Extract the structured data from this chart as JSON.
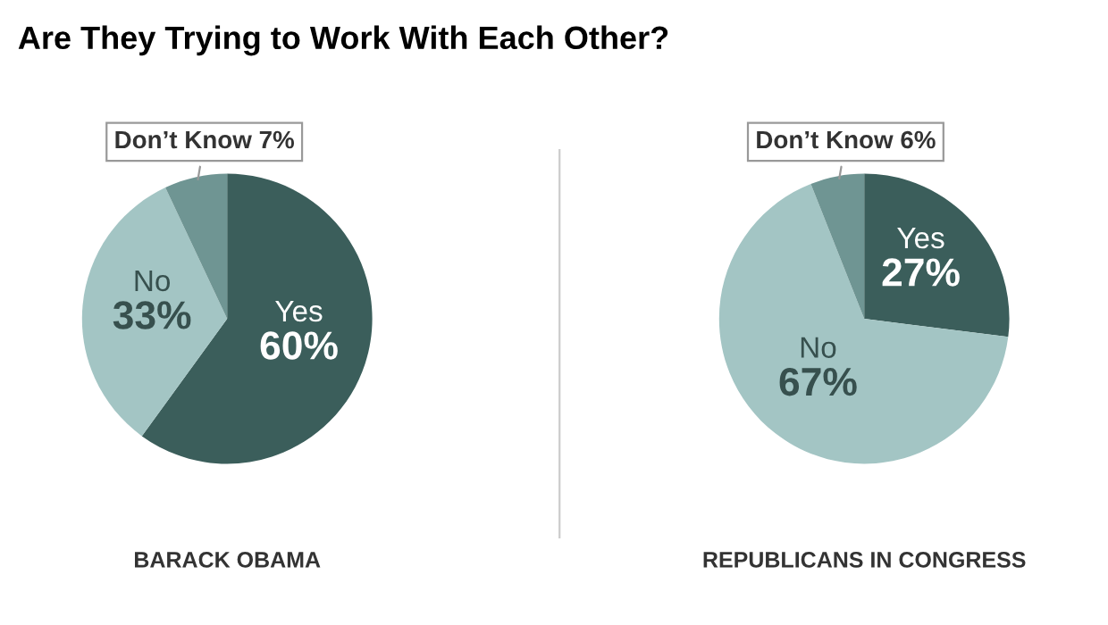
{
  "chart_data": [
    {
      "type": "pie",
      "title": "Are They Trying to Work With Each Other?",
      "xlabel": "BARACK OBAMA",
      "categories": [
        "Yes",
        "No",
        "Don’t Know"
      ],
      "values": [
        60,
        33,
        7
      ],
      "value_labels": [
        "60%",
        "33%",
        "7%"
      ],
      "colors": [
        "#3b5e5b",
        "#a3c5c4",
        "#6f9593"
      ]
    },
    {
      "type": "pie",
      "xlabel": "REPUBLICANS IN CONGRESS",
      "categories": [
        "Yes",
        "No",
        "Don’t Know"
      ],
      "values": [
        27,
        67,
        6
      ],
      "value_labels": [
        "27%",
        "67%",
        "6%"
      ],
      "colors": [
        "#3b5e5b",
        "#a3c5c4",
        "#6f9593"
      ]
    }
  ]
}
